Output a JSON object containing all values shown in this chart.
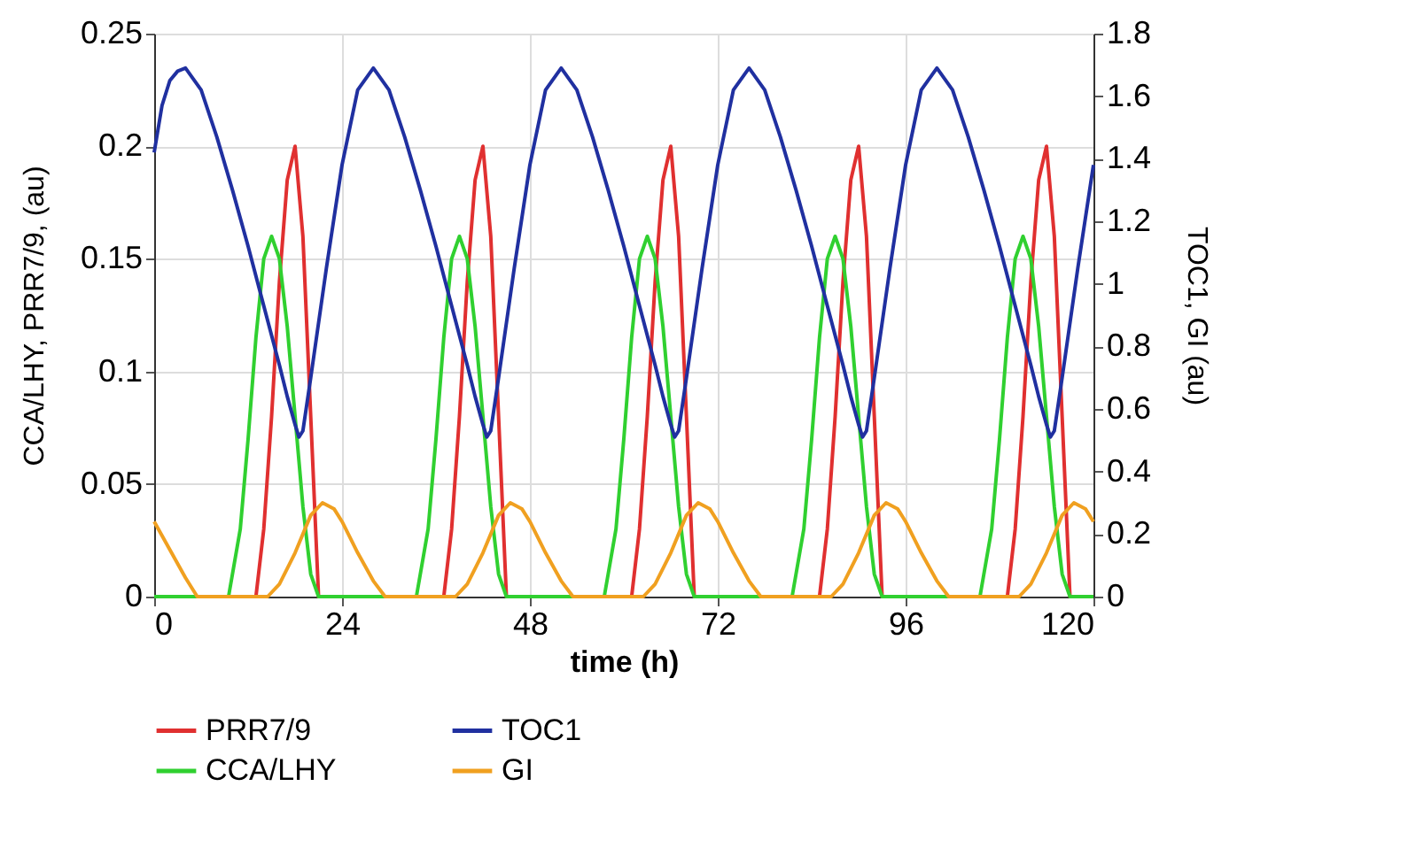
{
  "chart_data": {
    "type": "line",
    "xlabel": "time (h)",
    "ylabel": "CCA/LHY, PRR7/9,  (au)",
    "y2label": "TOC1, GI (au)",
    "xlim": [
      0,
      120
    ],
    "xticks": [
      0,
      24,
      48,
      72,
      96,
      120
    ],
    "ylim": [
      0,
      0.25
    ],
    "yticks": [
      0,
      0.05,
      0.1,
      0.15,
      0.2,
      0.25
    ],
    "y2lim": [
      0,
      1.8
    ],
    "y2ticks": [
      0,
      0.2,
      0.4,
      0.6,
      0.8,
      1,
      1.2,
      1.4,
      1.6,
      1.8
    ],
    "grid": true,
    "legend": "bottom",
    "marker": "none",
    "line_style": "solid",
    "series": [
      {
        "name": "PRR7/9",
        "color": "#e03030",
        "x": [
          0,
          13,
          14,
          15,
          16,
          17,
          18,
          19,
          20,
          21,
          37,
          38,
          39,
          40,
          41,
          42,
          43,
          44,
          45,
          61,
          62,
          63,
          64,
          65,
          66,
          67,
          68,
          69,
          85,
          86,
          87,
          88,
          89,
          90,
          91,
          92,
          93,
          109,
          110,
          111,
          112,
          113,
          114,
          115,
          116,
          117,
          120
        ],
        "values": [
          0,
          0,
          0.03,
          0.08,
          0.14,
          0.185,
          0.2,
          0.16,
          0.08,
          0,
          0,
          0.03,
          0.08,
          0.14,
          0.185,
          0.2,
          0.16,
          0.08,
          0,
          0,
          0.03,
          0.08,
          0.14,
          0.185,
          0.2,
          0.16,
          0.08,
          0,
          0,
          0.03,
          0.08,
          0.14,
          0.185,
          0.2,
          0.16,
          0.08,
          0,
          0,
          0.03,
          0.08,
          0.14,
          0.185,
          0.2,
          0.16,
          0.08,
          0,
          0
        ]
      },
      {
        "name": "TOC1",
        "color": "#2030a0",
        "axis": "y2",
        "x": [
          0,
          1,
          2,
          3,
          4,
          6,
          8,
          10,
          12,
          14,
          16,
          17,
          18,
          18.5,
          19,
          20,
          22,
          24,
          26,
          28,
          30,
          32,
          34,
          36,
          38,
          40,
          41,
          42,
          42.5,
          43,
          44,
          46,
          48,
          50,
          52,
          54,
          56,
          58,
          60,
          62,
          64,
          65,
          66,
          66.5,
          67,
          68,
          70,
          72,
          74,
          76,
          78,
          80,
          82,
          84,
          86,
          88,
          89,
          90,
          90.5,
          91,
          92,
          94,
          96,
          98,
          100,
          102,
          104,
          106,
          108,
          110,
          112,
          113,
          114,
          114.5,
          115,
          116,
          118,
          120
        ],
        "values": [
          1.42,
          1.57,
          1.65,
          1.68,
          1.69,
          1.62,
          1.47,
          1.3,
          1.12,
          0.93,
          0.74,
          0.64,
          0.55,
          0.51,
          0.53,
          0.7,
          1.05,
          1.38,
          1.62,
          1.69,
          1.62,
          1.47,
          1.3,
          1.12,
          0.93,
          0.74,
          0.64,
          0.55,
          0.51,
          0.53,
          0.7,
          1.05,
          1.38,
          1.62,
          1.69,
          1.62,
          1.47,
          1.3,
          1.12,
          0.93,
          0.74,
          0.64,
          0.55,
          0.51,
          0.53,
          0.7,
          1.05,
          1.38,
          1.62,
          1.69,
          1.62,
          1.47,
          1.3,
          1.12,
          0.93,
          0.74,
          0.64,
          0.55,
          0.51,
          0.53,
          0.7,
          1.05,
          1.38,
          1.62,
          1.69,
          1.62,
          1.47,
          1.3,
          1.12,
          0.93,
          0.74,
          0.64,
          0.55,
          0.51,
          0.53,
          0.7,
          1.05,
          1.38
        ]
      },
      {
        "name": "CCA/LHY",
        "color": "#30d030",
        "x": [
          0,
          9.5,
          11,
          12,
          13,
          14,
          15,
          16,
          17,
          18,
          19,
          20,
          21,
          33.5,
          35,
          36,
          37,
          38,
          39,
          40,
          41,
          42,
          43,
          44,
          45,
          57.5,
          59,
          60,
          61,
          62,
          63,
          64,
          65,
          66,
          67,
          68,
          69,
          81.5,
          83,
          84,
          85,
          86,
          87,
          88,
          89,
          90,
          91,
          92,
          93,
          105.5,
          107,
          108,
          109,
          110,
          111,
          112,
          113,
          114,
          115,
          116,
          117,
          120
        ],
        "values": [
          0,
          0,
          0.03,
          0.07,
          0.115,
          0.15,
          0.16,
          0.15,
          0.12,
          0.08,
          0.04,
          0.01,
          0,
          0,
          0.03,
          0.07,
          0.115,
          0.15,
          0.16,
          0.15,
          0.12,
          0.08,
          0.04,
          0.01,
          0,
          0,
          0.03,
          0.07,
          0.115,
          0.15,
          0.16,
          0.15,
          0.12,
          0.08,
          0.04,
          0.01,
          0,
          0,
          0.03,
          0.07,
          0.115,
          0.15,
          0.16,
          0.15,
          0.12,
          0.08,
          0.04,
          0.01,
          0,
          0,
          0.03,
          0.07,
          0.115,
          0.15,
          0.16,
          0.15,
          0.12,
          0.08,
          0.04,
          0.01,
          0,
          0
        ]
      },
      {
        "name": "GI",
        "color": "#f0a020",
        "axis": "y2",
        "x": [
          0,
          2,
          4,
          5.5,
          14.5,
          16,
          18,
          20,
          21.5,
          23,
          24,
          26,
          28,
          29.5,
          38.5,
          40,
          42,
          44,
          45.5,
          47,
          48,
          50,
          52,
          53.5,
          62.5,
          64,
          66,
          68,
          69.5,
          71,
          72,
          74,
          76,
          77.5,
          86.5,
          88,
          90,
          92,
          93.5,
          95,
          96,
          98,
          100,
          101.5,
          110.5,
          112,
          114,
          116,
          117.5,
          119,
          120
        ],
        "values": [
          0.24,
          0.15,
          0.06,
          0,
          0,
          0.04,
          0.14,
          0.26,
          0.3,
          0.28,
          0.24,
          0.14,
          0.05,
          0,
          0,
          0.04,
          0.14,
          0.26,
          0.3,
          0.28,
          0.24,
          0.14,
          0.05,
          0,
          0,
          0.04,
          0.14,
          0.26,
          0.3,
          0.28,
          0.24,
          0.14,
          0.05,
          0,
          0,
          0.04,
          0.14,
          0.26,
          0.3,
          0.28,
          0.24,
          0.14,
          0.05,
          0,
          0,
          0.04,
          0.14,
          0.26,
          0.3,
          0.28,
          0.24
        ]
      }
    ]
  }
}
